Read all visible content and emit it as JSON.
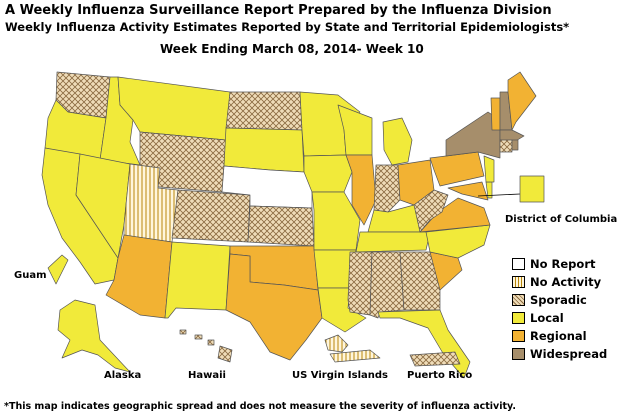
{
  "title_line1": "A Weekly Influenza Surveillance Report Prepared by the Influenza Division",
  "title_line2": "Weekly Influenza Activity Estimates Reported by State and Territorial Epidemiologists*",
  "week_label": "Week Ending March 08, 2014- Week 10",
  "footnote": "*This map indicates geographic spread and does not measure the severity of influenza activity.",
  "map_labels": {
    "dc": "District of Columbia",
    "guam": "Guam",
    "alaska": "Alaska",
    "hawaii": "Hawaii",
    "usvi": "US Virgin Islands",
    "pr": "Puerto Rico"
  },
  "legend": [
    {
      "key": "no_report",
      "label": "No Report",
      "color": "#ffffff",
      "pattern": "none"
    },
    {
      "key": "no_activity",
      "label": "No Activity",
      "color": "#fff6dc",
      "pattern": "vertical-lines"
    },
    {
      "key": "sporadic",
      "label": "Sporadic",
      "color": "#efdcb8",
      "pattern": "crosshatch"
    },
    {
      "key": "local",
      "label": "Local",
      "color": "#f1ea3a",
      "pattern": "none"
    },
    {
      "key": "regional",
      "label": "Regional",
      "color": "#f2b233",
      "pattern": "none"
    },
    {
      "key": "widespread",
      "label": "Widespread",
      "color": "#a68e6b",
      "pattern": "none"
    }
  ]
}
